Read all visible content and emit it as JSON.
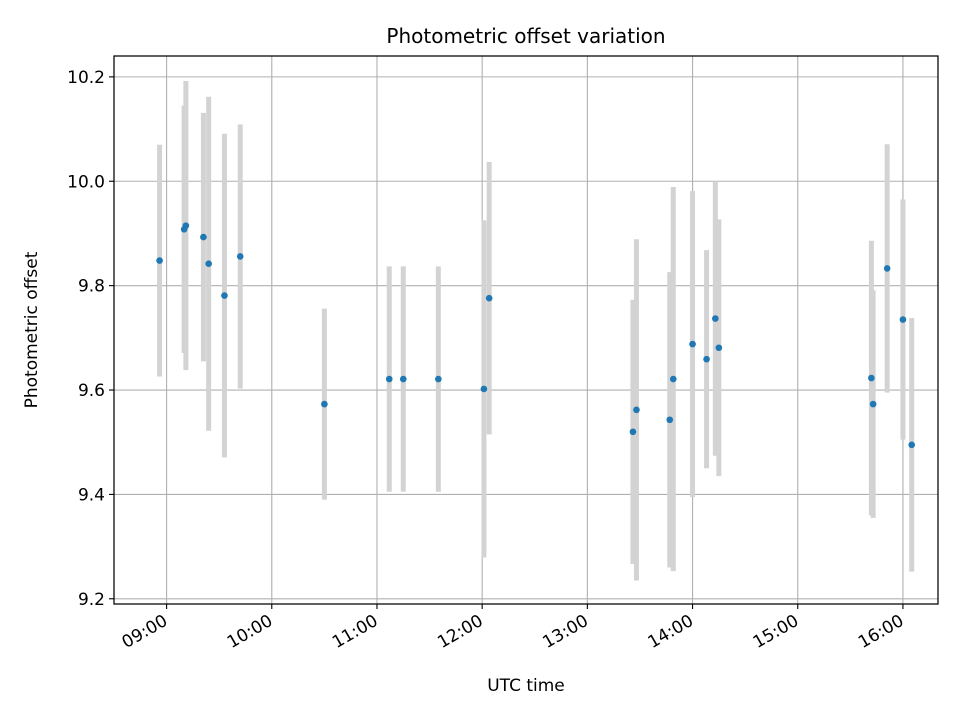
{
  "chart_data": {
    "type": "scatter",
    "title": "Photometric offset variation",
    "xlabel": "UTC time",
    "ylabel": "Photometric offset",
    "grid": true,
    "x_ticks": [
      "09:00",
      "10:00",
      "11:00",
      "12:00",
      "13:00",
      "14:00",
      "15:00",
      "16:00"
    ],
    "y_ticks": [
      "9.2",
      "9.4",
      "9.6",
      "9.8",
      "10.0",
      "10.2"
    ],
    "xlim": [
      "08:30",
      "16:20"
    ],
    "ylim": [
      9.19,
      10.24
    ],
    "colors": {
      "point": "#1f77b4",
      "errorbar": "#d3d3d3",
      "grid": "#b0b0b0"
    },
    "series": [
      {
        "points": [
          {
            "x": "08:56",
            "y": 9.848,
            "err": 0.222
          },
          {
            "x": "09:10",
            "y": 9.908,
            "err": 0.237
          },
          {
            "x": "09:11",
            "y": 9.915,
            "err": 0.277
          },
          {
            "x": "09:21",
            "y": 9.893,
            "err": 0.238
          },
          {
            "x": "09:24",
            "y": 9.842,
            "err": 0.32
          },
          {
            "x": "09:33",
            "y": 9.781,
            "err": 0.31
          },
          {
            "x": "09:42",
            "y": 9.856,
            "err": 0.253
          },
          {
            "x": "10:30",
            "y": 9.573,
            "err": 0.183
          },
          {
            "x": "11:07",
            "y": 9.621,
            "err": 0.216
          },
          {
            "x": "11:15",
            "y": 9.621,
            "err": 0.216
          },
          {
            "x": "11:35",
            "y": 9.621,
            "err": 0.216
          },
          {
            "x": "12:01",
            "y": 9.602,
            "err": 0.323
          },
          {
            "x": "12:04",
            "y": 9.776,
            "err": 0.261
          },
          {
            "x": "13:26",
            "y": 9.52,
            "err": 0.253
          },
          {
            "x": "13:28",
            "y": 9.562,
            "err": 0.327
          },
          {
            "x": "13:47",
            "y": 9.543,
            "err": 0.283
          },
          {
            "x": "13:49",
            "y": 9.621,
            "err": 0.368
          },
          {
            "x": "14:00",
            "y": 9.688,
            "err": 0.293
          },
          {
            "x": "14:08",
            "y": 9.659,
            "err": 0.209
          },
          {
            "x": "14:13",
            "y": 9.737,
            "err": 0.263
          },
          {
            "x": "14:15",
            "y": 9.681,
            "err": 0.246
          },
          {
            "x": "15:42",
            "y": 9.623,
            "err": 0.263
          },
          {
            "x": "15:43",
            "y": 9.573,
            "err": 0.218
          },
          {
            "x": "15:51",
            "y": 9.833,
            "err": 0.238
          },
          {
            "x": "16:00",
            "y": 9.735,
            "err": 0.23
          },
          {
            "x": "16:05",
            "y": 9.495,
            "err": 0.243
          }
        ]
      }
    ]
  }
}
